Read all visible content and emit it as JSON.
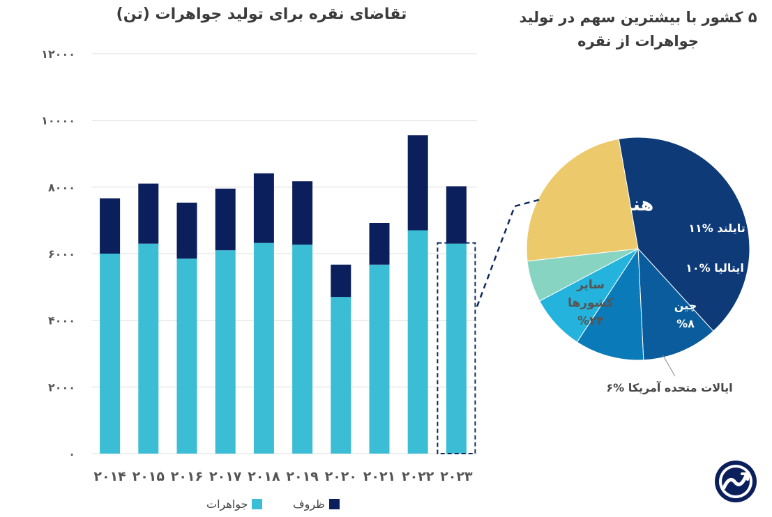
{
  "titles": {
    "bar_title": "تقاضای نقره برای تولید جواهرات (تن)",
    "pie_title_line1": "۵ کشور با بیشترین سهم در تولید",
    "pie_title_line2": "جواهرات از نقره"
  },
  "legend": {
    "jewelry": "جواهرات",
    "jewelry_color": "#3bbdd6",
    "silverware": "ظروف",
    "silverware_color": "#0b1f5c"
  },
  "chart_data": [
    {
      "type": "bar",
      "stacked": true,
      "categories": [
        "۲۰۱۴",
        "۲۰۱۵",
        "۲۰۱۶",
        "۲۰۱۷",
        "۲۰۱۸",
        "۲۰۱۹",
        "۲۰۲۰",
        "۲۰۲۱",
        "۲۰۲۲",
        "۲۰۲۳"
      ],
      "series": [
        {
          "name": "جواهرات",
          "color": "#3bbdd6",
          "values": [
            6000,
            6300,
            5850,
            6100,
            6320,
            6270,
            4700,
            5670,
            6700,
            6300
          ]
        },
        {
          "name": "ظروف",
          "color": "#0b1f5c",
          "values": [
            1660,
            1800,
            1680,
            1850,
            2090,
            1900,
            970,
            1250,
            2850,
            1720
          ]
        }
      ],
      "yticks": [
        "۰",
        "۲۰۰۰",
        "۴۰۰۰",
        "۶۰۰۰",
        "۸۰۰۰",
        "۱۰۰۰۰",
        "۱۲۰۰۰"
      ],
      "ylim": [
        0,
        12000
      ],
      "grid": true,
      "highlight_category": "۲۰۲۳",
      "legend_position": "bottom-center"
    },
    {
      "type": "pie",
      "slices": [
        {
          "label": "هند",
          "pct_label": "%۴۱",
          "value": 41,
          "color": "#0e3a78"
        },
        {
          "label": "تایلند",
          "pct_label": "%۱۱",
          "value": 11,
          "color": "#0a5c9c"
        },
        {
          "label": "ایتالیا",
          "pct_label": "%۱۰",
          "value": 10,
          "color": "#0b7ab8"
        },
        {
          "label": "چین",
          "pct_label": "%۸",
          "value": 8,
          "color": "#24b3dc"
        },
        {
          "label": "ایالات متحده آمریکا",
          "pct_label": "%۶",
          "value": 6,
          "color": "#88d4c3"
        },
        {
          "label": "سایر کشورها",
          "pct_label": "%۲۴",
          "value": 24,
          "color": "#ecca6c"
        }
      ]
    }
  ]
}
